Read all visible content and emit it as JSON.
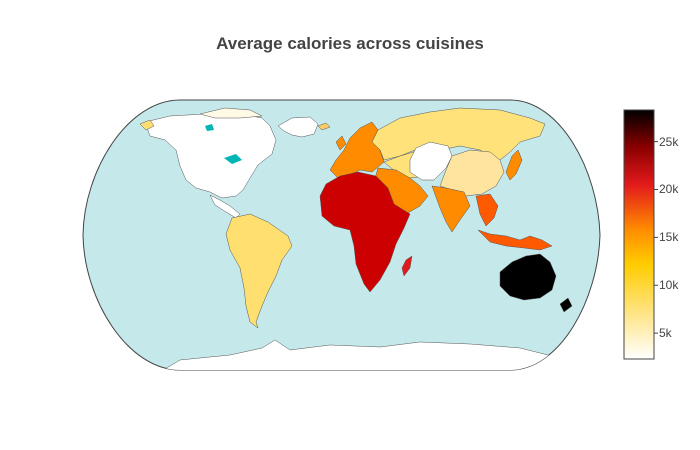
{
  "title": "Average calories across cuisines",
  "colorbar": {
    "ticks": [
      "5k",
      "10k",
      "15k",
      "20k",
      "25k"
    ],
    "tick_values": [
      5000,
      10000,
      15000,
      20000,
      25000
    ],
    "range": [
      2300,
      28300
    ],
    "colorscale": [
      "#ffffff",
      "#ffe27a",
      "#ffcc00",
      "#ff8c00",
      "#e31a1c",
      "#8b0000",
      "#000000"
    ]
  },
  "colors": {
    "ocean": "#c5e8ea",
    "land_no_data": "#ffffff",
    "lakes": "#00b5b5",
    "border": "#444444"
  },
  "chart_data": {
    "type": "choropleth",
    "title": "Average calories across cuisines",
    "regions": [
      {
        "region": "North America",
        "value": 2500
      },
      {
        "region": "Central America",
        "value": 2500
      },
      {
        "region": "Greenland",
        "value": 2500
      },
      {
        "region": "South America",
        "value": 9500
      },
      {
        "region": "Western Europe",
        "value": 15500
      },
      {
        "region": "Eastern Europe and Russia",
        "value": 9000
      },
      {
        "region": "Central Asia",
        "value": 9000
      },
      {
        "region": "China",
        "value": 2500
      },
      {
        "region": "Middle East",
        "value": 14500
      },
      {
        "region": "India",
        "value": 14000
      },
      {
        "region": "Japan and Korea",
        "value": 15000
      },
      {
        "region": "Africa",
        "value": 22000
      },
      {
        "region": "Madagascar",
        "value": 19000
      },
      {
        "region": "Southeast Asia",
        "value": 17000
      },
      {
        "region": "Australia and New Zealand",
        "value": 28000
      }
    ]
  }
}
